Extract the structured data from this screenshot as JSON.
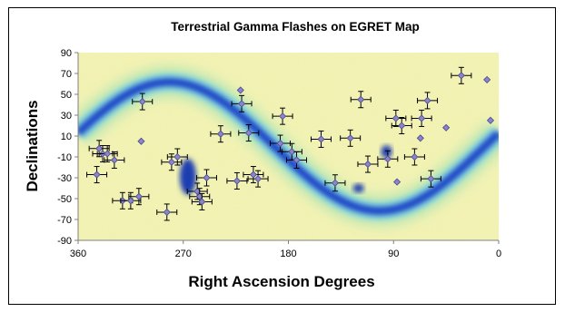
{
  "chart_data": {
    "type": "scatter",
    "title": "Terrestrial Gamma Flashes on EGRET Map",
    "xlabel": "Right Ascension Degrees",
    "ylabel": "Declinations",
    "xlim": [
      360,
      0
    ],
    "ylim": [
      -90,
      90
    ],
    "x_reversed": true,
    "xticks": [
      "360",
      "270",
      "180",
      "90",
      "0"
    ],
    "yticks": [
      "90",
      "70",
      "50",
      "30",
      "10",
      "-10",
      "-30",
      "-50",
      "-70",
      "-90"
    ],
    "background": "EGRET all-sky gamma-ray intensity map",
    "grid": false,
    "colors": {
      "marker": "#8a86c8",
      "marker_edge": "#4a4690",
      "errorbar": "#000000",
      "map_low": "#f4f2b0",
      "map_mid": "#b8e6b4",
      "map_high": "#1e46c8"
    },
    "points_with_errorbars": [
      {
        "x": 305,
        "y": 43
      },
      {
        "x": 342,
        "y": -2
      },
      {
        "x": 339,
        "y": -7
      },
      {
        "x": 335,
        "y": -7
      },
      {
        "x": 329,
        "y": -13
      },
      {
        "x": 344,
        "y": -27
      },
      {
        "x": 322,
        "y": -52
      },
      {
        "x": 315,
        "y": -52
      },
      {
        "x": 308,
        "y": -48
      },
      {
        "x": 284,
        "y": -63
      },
      {
        "x": 280,
        "y": -15
      },
      {
        "x": 275,
        "y": -10
      },
      {
        "x": 258,
        "y": -43
      },
      {
        "x": 256,
        "y": -48
      },
      {
        "x": 254,
        "y": -53
      },
      {
        "x": 250,
        "y": -30
      },
      {
        "x": 238,
        "y": 12
      },
      {
        "x": 220,
        "y": 41
      },
      {
        "x": 214,
        "y": 13
      },
      {
        "x": 210,
        "y": -27
      },
      {
        "x": 206,
        "y": -31
      },
      {
        "x": 224,
        "y": -33
      },
      {
        "x": 185,
        "y": 29
      },
      {
        "x": 187,
        "y": 3
      },
      {
        "x": 177,
        "y": -5
      },
      {
        "x": 173,
        "y": -13
      },
      {
        "x": 152,
        "y": 7
      },
      {
        "x": 140,
        "y": -35
      },
      {
        "x": 127,
        "y": 8
      },
      {
        "x": 118,
        "y": 45
      },
      {
        "x": 112,
        "y": -17
      },
      {
        "x": 95,
        "y": -12
      },
      {
        "x": 88,
        "y": 27
      },
      {
        "x": 83,
        "y": 20
      },
      {
        "x": 66,
        "y": 27
      },
      {
        "x": 61,
        "y": 44
      },
      {
        "x": 72,
        "y": -10
      },
      {
        "x": 58,
        "y": -31
      },
      {
        "x": 32,
        "y": 68
      }
    ],
    "points_without_errorbars": [
      {
        "x": 306,
        "y": 5
      },
      {
        "x": 221,
        "y": 54
      },
      {
        "x": 87,
        "y": -34
      },
      {
        "x": 67,
        "y": 8
      },
      {
        "x": 45,
        "y": 18
      },
      {
        "x": 10,
        "y": 64
      },
      {
        "x": 7,
        "y": 25
      }
    ]
  }
}
